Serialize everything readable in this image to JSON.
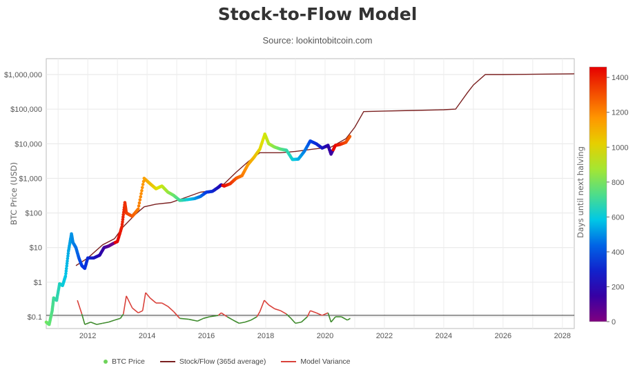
{
  "page": {
    "title": "Stock-to-Flow Model",
    "subtitle": "Source: lookintobitcoin.com"
  },
  "chart_data": {
    "type": "line",
    "title": "Stock-to-Flow Model",
    "subtitle": "Source: lookintobitcoin.com",
    "ylabel": "BTC Price (USD)",
    "yscale": "log",
    "ylim": [
      0.03,
      1500000
    ],
    "xlim": [
      2010.6,
      2028.4
    ],
    "x_ticks": [
      "2012",
      "2014",
      "2016",
      "2018",
      "2020",
      "2022",
      "2024",
      "2026",
      "2028"
    ],
    "y_ticks": [
      "$0.1",
      "$1",
      "$10",
      "$100",
      "$1,000",
      "$10,000",
      "$100,000",
      "$1,000,000"
    ],
    "grid": true,
    "legend_position": "bottom",
    "legend": [
      "BTC Price",
      "Stock/Flow (365d average)",
      "Model Variance"
    ],
    "colorbar": {
      "label": "Days until next halving",
      "ticks": [
        "0",
        "200",
        "400",
        "600",
        "800",
        "1000",
        "1200",
        "1400"
      ],
      "range": [
        0,
        1460
      ]
    },
    "reference_line": {
      "name": "Model Variance baseline",
      "value": 0.11
    },
    "series": [
      {
        "name": "BTC Price",
        "color_by": "days_until_next_halving",
        "points": [
          [
            2010.6,
            0.07,
            800
          ],
          [
            2010.7,
            0.06,
            770
          ],
          [
            2010.8,
            0.15,
            730
          ],
          [
            2010.85,
            0.35,
            710
          ],
          [
            2010.95,
            0.3,
            680
          ],
          [
            2011.05,
            0.9,
            650
          ],
          [
            2011.15,
            0.8,
            610
          ],
          [
            2011.25,
            1.5,
            580
          ],
          [
            2011.35,
            8,
            540
          ],
          [
            2011.45,
            25,
            510
          ],
          [
            2011.5,
            14,
            490
          ],
          [
            2011.6,
            10,
            460
          ],
          [
            2011.7,
            5,
            420
          ],
          [
            2011.8,
            3,
            380
          ],
          [
            2011.9,
            2.5,
            350
          ],
          [
            2012.0,
            5,
            330
          ],
          [
            2012.2,
            5,
            260
          ],
          [
            2012.4,
            6,
            190
          ],
          [
            2012.55,
            10,
            140
          ],
          [
            2012.7,
            11,
            90
          ],
          [
            2012.85,
            13,
            30
          ],
          [
            2013.0,
            15,
            1450
          ],
          [
            2013.15,
            40,
            1400
          ],
          [
            2013.25,
            200,
            1370
          ],
          [
            2013.3,
            100,
            1350
          ],
          [
            2013.5,
            80,
            1290
          ],
          [
            2013.7,
            130,
            1220
          ],
          [
            2013.9,
            1000,
            1150
          ],
          [
            2014.1,
            700,
            1080
          ],
          [
            2014.3,
            500,
            1000
          ],
          [
            2014.5,
            600,
            930
          ],
          [
            2014.7,
            400,
            860
          ],
          [
            2014.9,
            320,
            780
          ],
          [
            2015.1,
            230,
            710
          ],
          [
            2015.3,
            240,
            640
          ],
          [
            2015.6,
            260,
            530
          ],
          [
            2015.8,
            300,
            460
          ],
          [
            2016.0,
            400,
            380
          ],
          [
            2016.2,
            420,
            320
          ],
          [
            2016.4,
            550,
            230
          ],
          [
            2016.5,
            650,
            200
          ],
          [
            2016.6,
            600,
            1440
          ],
          [
            2016.8,
            700,
            1370
          ],
          [
            2017.0,
            1000,
            1300
          ],
          [
            2017.2,
            1200,
            1230
          ],
          [
            2017.4,
            2500,
            1150
          ],
          [
            2017.6,
            4000,
            1080
          ],
          [
            2017.8,
            7000,
            1010
          ],
          [
            2017.97,
            19000,
            950
          ],
          [
            2018.1,
            10000,
            900
          ],
          [
            2018.3,
            8000,
            830
          ],
          [
            2018.5,
            7000,
            760
          ],
          [
            2018.7,
            6500,
            690
          ],
          [
            2018.9,
            3500,
            620
          ],
          [
            2019.1,
            3600,
            550
          ],
          [
            2019.3,
            6000,
            480
          ],
          [
            2019.5,
            12000,
            400
          ],
          [
            2019.7,
            10000,
            330
          ],
          [
            2019.9,
            7500,
            260
          ],
          [
            2020.1,
            9000,
            180
          ],
          [
            2020.2,
            5000,
            140
          ],
          [
            2020.35,
            9000,
            1450
          ],
          [
            2020.5,
            9500,
            1400
          ],
          [
            2020.7,
            11000,
            1320
          ],
          [
            2020.85,
            17000,
            1270
          ]
        ]
      },
      {
        "name": "Stock/Flow (365d average)",
        "color": "#7a1f1f",
        "points": [
          [
            2011.6,
            3
          ],
          [
            2012.0,
            5
          ],
          [
            2012.5,
            12
          ],
          [
            2012.9,
            18
          ],
          [
            2013.2,
            40
          ],
          [
            2013.6,
            90
          ],
          [
            2013.9,
            150
          ],
          [
            2014.3,
            180
          ],
          [
            2014.8,
            200
          ],
          [
            2015.3,
            280
          ],
          [
            2015.8,
            400
          ],
          [
            2016.3,
            450
          ],
          [
            2016.6,
            700
          ],
          [
            2017.0,
            1500
          ],
          [
            2017.4,
            3000
          ],
          [
            2017.8,
            5500
          ],
          [
            2018.5,
            5500
          ],
          [
            2019.0,
            6000
          ],
          [
            2019.6,
            7000
          ],
          [
            2020.2,
            8000
          ],
          [
            2020.7,
            14000
          ],
          [
            2021.0,
            30000
          ],
          [
            2021.3,
            85000
          ],
          [
            2022.0,
            88000
          ],
          [
            2023.0,
            92000
          ],
          [
            2024.0,
            96000
          ],
          [
            2024.4,
            100000
          ],
          [
            2024.8,
            300000
          ],
          [
            2025.0,
            500000
          ],
          [
            2025.4,
            1000000
          ],
          [
            2026.0,
            1000000
          ],
          [
            2027.0,
            1020000
          ],
          [
            2028.4,
            1050000
          ]
        ]
      },
      {
        "name": "Model Variance",
        "points": [
          [
            2011.65,
            0.3
          ],
          [
            2011.8,
            0.12
          ],
          [
            2011.9,
            0.06
          ],
          [
            2012.1,
            0.07
          ],
          [
            2012.3,
            0.06
          ],
          [
            2012.5,
            0.065
          ],
          [
            2012.7,
            0.07
          ],
          [
            2012.9,
            0.08
          ],
          [
            2013.1,
            0.09
          ],
          [
            2013.2,
            0.12
          ],
          [
            2013.3,
            0.4
          ],
          [
            2013.5,
            0.18
          ],
          [
            2013.7,
            0.13
          ],
          [
            2013.85,
            0.15
          ],
          [
            2013.95,
            0.5
          ],
          [
            2014.1,
            0.35
          ],
          [
            2014.3,
            0.25
          ],
          [
            2014.5,
            0.25
          ],
          [
            2014.7,
            0.2
          ],
          [
            2014.9,
            0.14
          ],
          [
            2015.1,
            0.09
          ],
          [
            2015.4,
            0.085
          ],
          [
            2015.7,
            0.075
          ],
          [
            2015.9,
            0.09
          ],
          [
            2016.1,
            0.1
          ],
          [
            2016.4,
            0.11
          ],
          [
            2016.5,
            0.13
          ],
          [
            2016.7,
            0.1
          ],
          [
            2016.9,
            0.08
          ],
          [
            2017.1,
            0.065
          ],
          [
            2017.3,
            0.07
          ],
          [
            2017.5,
            0.08
          ],
          [
            2017.7,
            0.1
          ],
          [
            2017.8,
            0.14
          ],
          [
            2017.95,
            0.3
          ],
          [
            2018.1,
            0.22
          ],
          [
            2018.3,
            0.17
          ],
          [
            2018.5,
            0.15
          ],
          [
            2018.7,
            0.12
          ],
          [
            2018.85,
            0.09
          ],
          [
            2019.0,
            0.065
          ],
          [
            2019.2,
            0.07
          ],
          [
            2019.4,
            0.1
          ],
          [
            2019.5,
            0.15
          ],
          [
            2019.7,
            0.13
          ],
          [
            2019.9,
            0.11
          ],
          [
            2020.1,
            0.13
          ],
          [
            2020.2,
            0.07
          ],
          [
            2020.35,
            0.1
          ],
          [
            2020.55,
            0.1
          ],
          [
            2020.75,
            0.08
          ],
          [
            2020.85,
            0.09
          ]
        ]
      }
    ]
  }
}
